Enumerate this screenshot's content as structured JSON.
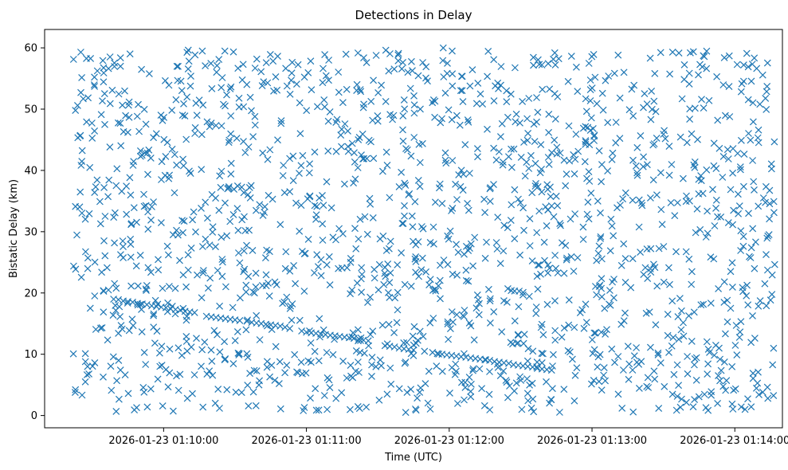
{
  "chart_data": {
    "type": "scatter",
    "title": "Detections in Delay",
    "xlabel": "Time (UTC)",
    "ylabel": "Bistatic Delay (km)",
    "marker": "x",
    "color": "#1f77b4",
    "grid": false,
    "xlim": [
      "2026-01-23 01:09:10",
      "2026-01-23 01:14:20"
    ],
    "ylim": [
      -2.0,
      63.0
    ],
    "xticks": [
      "2026-01-23 01:10:00",
      "2026-01-23 01:11:00",
      "2026-01-23 01:12:00",
      "2026-01-23 01:13:00",
      "2026-01-23 01:14:00"
    ],
    "yticks": [
      0,
      10,
      20,
      30,
      40,
      50,
      60
    ],
    "track": {
      "name": "",
      "points": [
        [
          "2026-01-23 01:09:39",
          19.0
        ],
        [
          "2026-01-23 01:09:41",
          18.9
        ],
        [
          "2026-01-23 01:09:43",
          18.7
        ],
        [
          "2026-01-23 01:09:45",
          18.6
        ],
        [
          "2026-01-23 01:09:47",
          18.5
        ],
        [
          "2026-01-23 01:09:49",
          18.3
        ],
        [
          "2026-01-23 01:09:51",
          18.2
        ],
        [
          "2026-01-23 01:09:53",
          18.1
        ],
        [
          "2026-01-23 01:09:55",
          17.9
        ],
        [
          "2026-01-23 01:09:57",
          17.8
        ],
        [
          "2026-01-23 01:09:59",
          17.7
        ],
        [
          "2026-01-23 01:10:01",
          17.6
        ],
        [
          "2026-01-23 01:10:03",
          17.4
        ],
        [
          "2026-01-23 01:10:05",
          17.3
        ],
        [
          "2026-01-23 01:10:07",
          17.2
        ],
        [
          "2026-01-23 01:10:09",
          17.0
        ],
        [
          "2026-01-23 01:10:11",
          16.9
        ],
        [
          "2026-01-23 01:10:13",
          16.8
        ],
        [
          "2026-01-23 01:10:18",
          16.2
        ],
        [
          "2026-01-23 01:10:20",
          16.1
        ],
        [
          "2026-01-23 01:10:22",
          16.0
        ],
        [
          "2026-01-23 01:10:24",
          15.9
        ],
        [
          "2026-01-23 01:10:26",
          15.8
        ],
        [
          "2026-01-23 01:10:28",
          15.7
        ],
        [
          "2026-01-23 01:10:30",
          15.6
        ],
        [
          "2026-01-23 01:10:32",
          15.5
        ],
        [
          "2026-01-23 01:10:35",
          15.4
        ],
        [
          "2026-01-23 01:10:37",
          15.2
        ],
        [
          "2026-01-23 01:10:39",
          15.1
        ],
        [
          "2026-01-23 01:10:41",
          15.0
        ],
        [
          "2026-01-23 01:10:43",
          14.9
        ],
        [
          "2026-01-23 01:10:45",
          14.8
        ],
        [
          "2026-01-23 01:10:47",
          14.7
        ],
        [
          "2026-01-23 01:10:49",
          14.6
        ],
        [
          "2026-01-23 01:10:51",
          14.4
        ],
        [
          "2026-01-23 01:10:53",
          14.2
        ],
        [
          "2026-01-23 01:10:58",
          13.8
        ],
        [
          "2026-01-23 01:11:00",
          13.6
        ],
        [
          "2026-01-23 01:11:02",
          13.5
        ],
        [
          "2026-01-23 01:11:04",
          13.4
        ],
        [
          "2026-01-23 01:11:06",
          13.3
        ],
        [
          "2026-01-23 01:11:08",
          13.2
        ],
        [
          "2026-01-23 01:11:10",
          13.1
        ],
        [
          "2026-01-23 01:11:12",
          13.0
        ],
        [
          "2026-01-23 01:11:14",
          12.9
        ],
        [
          "2026-01-23 01:11:16",
          12.8
        ],
        [
          "2026-01-23 01:11:18",
          12.7
        ],
        [
          "2026-01-23 01:11:20",
          12.6
        ],
        [
          "2026-01-23 01:11:22",
          12.5
        ],
        [
          "2026-01-23 01:11:24",
          12.3
        ],
        [
          "2026-01-23 01:11:26",
          12.2
        ],
        [
          "2026-01-23 01:11:33",
          11.4
        ],
        [
          "2026-01-23 01:11:35",
          11.3
        ],
        [
          "2026-01-23 01:11:37",
          11.2
        ],
        [
          "2026-01-23 01:11:39",
          11.0
        ],
        [
          "2026-01-23 01:11:41",
          10.9
        ],
        [
          "2026-01-23 01:11:43",
          10.8
        ],
        [
          "2026-01-23 01:11:45",
          10.7
        ],
        [
          "2026-01-23 01:11:53",
          10.3
        ],
        [
          "2026-01-23 01:11:55",
          10.1
        ],
        [
          "2026-01-23 01:11:57",
          10.0
        ],
        [
          "2026-01-23 01:11:59",
          9.9
        ],
        [
          "2026-01-23 01:12:01",
          9.8
        ],
        [
          "2026-01-23 01:12:03",
          9.7
        ],
        [
          "2026-01-23 01:12:05",
          9.6
        ],
        [
          "2026-01-23 01:12:07",
          9.5
        ],
        [
          "2026-01-23 01:12:09",
          9.4
        ],
        [
          "2026-01-23 01:12:11",
          9.3
        ],
        [
          "2026-01-23 01:12:13",
          9.2
        ],
        [
          "2026-01-23 01:12:15",
          9.1
        ],
        [
          "2026-01-23 01:12:17",
          9.0
        ],
        [
          "2026-01-23 01:12:19",
          8.8
        ],
        [
          "2026-01-23 01:12:21",
          8.7
        ],
        [
          "2026-01-23 01:12:23",
          8.6
        ],
        [
          "2026-01-23 01:12:25",
          8.5
        ],
        [
          "2026-01-23 01:12:27",
          8.3
        ],
        [
          "2026-01-23 01:12:29",
          8.2
        ],
        [
          "2026-01-23 01:12:31",
          8.1
        ],
        [
          "2026-01-23 01:12:33",
          8.0
        ],
        [
          "2026-01-23 01:12:35",
          7.9
        ],
        [
          "2026-01-23 01:12:37",
          7.7
        ],
        [
          "2026-01-23 01:12:39",
          7.6
        ],
        [
          "2026-01-23 01:12:41",
          7.5
        ],
        [
          "2026-01-23 01:12:43",
          7.4
        ]
      ]
    },
    "clutter": {
      "name": "",
      "count": 1700,
      "x_range": [
        "2026-01-23 01:09:22",
        "2026-01-23 01:14:17"
      ],
      "y_range": [
        0.5,
        60.0
      ]
    }
  }
}
